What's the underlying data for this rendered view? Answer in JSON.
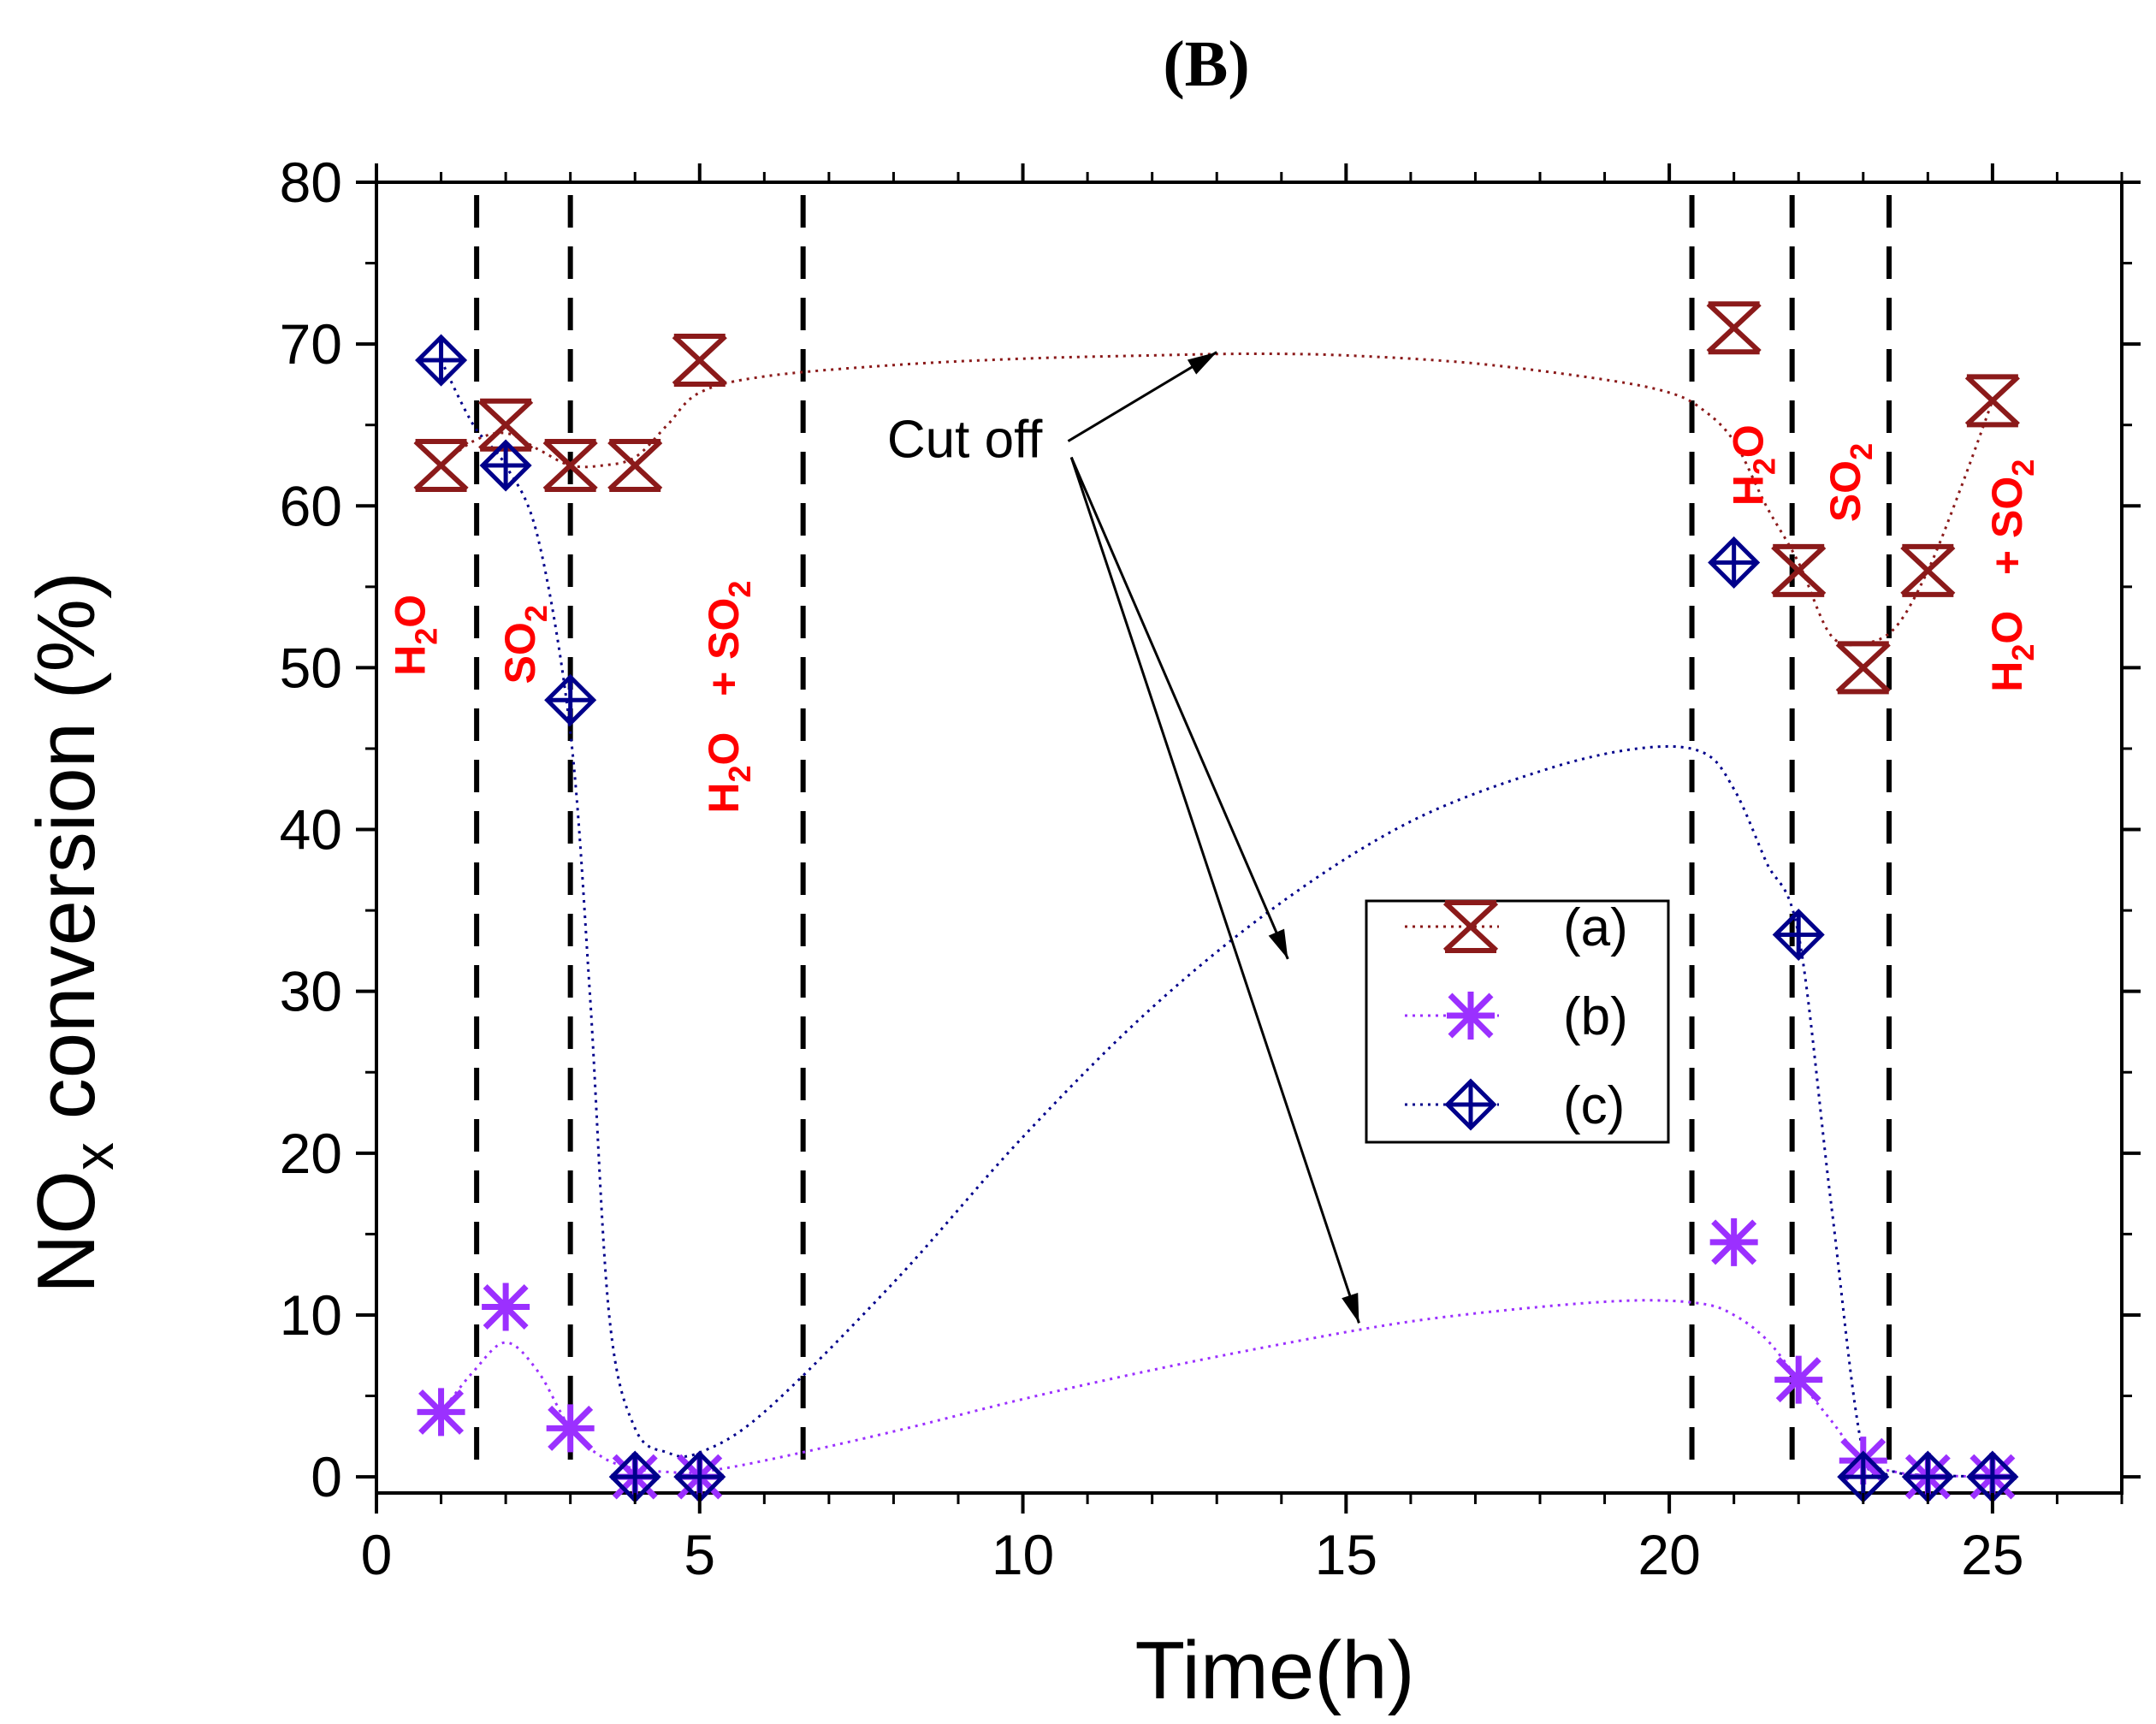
{
  "chart_data": {
    "type": "scatter",
    "panel_label": "(B)",
    "title": "",
    "xlabel": "Time(h)",
    "ylabel_main": "NO",
    "ylabel_sub": "x",
    "ylabel_rest": " conversion (%)",
    "xlim": [
      0,
      27
    ],
    "ylim": [
      -1,
      80
    ],
    "xticks": [
      0,
      5,
      10,
      15,
      20,
      25
    ],
    "yticks": [
      0,
      10,
      20,
      30,
      40,
      50,
      60,
      70,
      80
    ],
    "legend_position": "center-right",
    "series": [
      {
        "name": "(a)",
        "color": "#8b1a1a",
        "marker": "x-box",
        "x": [
          1,
          2,
          3,
          4,
          5,
          21,
          22,
          23,
          24,
          25
        ],
        "y": [
          62.5,
          65,
          62.5,
          62.5,
          69,
          71,
          56,
          50,
          56,
          66.5
        ],
        "fit_x": [
          1,
          1.5,
          2,
          2.5,
          3,
          3.5,
          4,
          4.5,
          5,
          6,
          8,
          10,
          12,
          13.5,
          15,
          17,
          19,
          20,
          20.5,
          21,
          21.5,
          22,
          22.5,
          23,
          23.5,
          24,
          24.5,
          25
        ],
        "fit_y": [
          62.5,
          64,
          64.5,
          63.5,
          62.5,
          62.5,
          63,
          65,
          67,
          68,
          68.7,
          69.1,
          69.3,
          69.4,
          69.3,
          68.8,
          67.8,
          67,
          66,
          64,
          60,
          56.5,
          52,
          51.5,
          52.5,
          56,
          61,
          66.5
        ]
      },
      {
        "name": "(b)",
        "color": "#9b30ff",
        "marker": "asterisk",
        "x": [
          1,
          2,
          3,
          4,
          5,
          21,
          22,
          23,
          24,
          25
        ],
        "y": [
          4,
          10.5,
          3,
          0,
          0,
          14.5,
          6,
          1,
          0,
          0
        ],
        "fit_x": [
          1,
          1.5,
          2,
          2.5,
          3,
          3.5,
          4,
          4.5,
          5,
          6,
          8,
          10,
          12,
          14,
          16,
          18,
          19.5,
          20.5,
          21,
          21.5,
          22,
          22.5,
          23,
          23.5,
          24,
          25
        ],
        "fit_y": [
          4,
          6.5,
          8.3,
          6.5,
          3,
          1.2,
          0.5,
          0.3,
          0.3,
          1,
          2.8,
          4.8,
          6.6,
          8.2,
          9.6,
          10.5,
          10.9,
          10.7,
          10,
          8.5,
          6,
          3.5,
          1,
          0.3,
          0.1,
          0
        ]
      },
      {
        "name": "(c)",
        "color": "#00008b",
        "marker": "cross-diamond",
        "x": [
          1,
          2,
          3,
          4,
          5,
          21,
          22,
          23,
          24,
          25
        ],
        "y": [
          69,
          62.5,
          48,
          0,
          0,
          56.5,
          33.5,
          0,
          0,
          0
        ],
        "fit_x": [
          1,
          1.5,
          2,
          2.5,
          3,
          3.3,
          3.6,
          4,
          4.5,
          5,
          6,
          8,
          10,
          12,
          14,
          16,
          18,
          19.5,
          20.5,
          21,
          21.5,
          22,
          22.5,
          23,
          23.5,
          24,
          25
        ],
        "fit_y": [
          69,
          65,
          62.5,
          58,
          46,
          30,
          10,
          3,
          1.5,
          1.5,
          4,
          12,
          21,
          29,
          35.5,
          40.5,
          43.6,
          45,
          44.8,
          42.5,
          38,
          33.5,
          17,
          1.5,
          0.3,
          0.1,
          0
        ]
      }
    ],
    "dashed_lines_x": [
      1.55,
      3.0,
      6.6,
      20.35,
      21.9,
      23.4
    ],
    "annotations": [
      {
        "id": "a1",
        "text": "H",
        "sub": "2",
        "tail": "O",
        "x": 0.75,
        "y": 49.5
      },
      {
        "id": "a2",
        "text": "SO",
        "sub": "2",
        "tail": "",
        "x": 2.45,
        "y": 49
      },
      {
        "id": "a3",
        "text": "H",
        "sub": "2",
        "tail": "O   + SO",
        "tail_sub": "2",
        "x": 5.6,
        "y": 41
      },
      {
        "id": "a4",
        "text": "H",
        "sub": "2",
        "tail": "O",
        "x": 21.45,
        "y": 60
      },
      {
        "id": "a5",
        "text": "SO",
        "sub": "2",
        "tail": "",
        "x": 22.95,
        "y": 59
      },
      {
        "id": "a6",
        "text": "H",
        "sub": "2",
        "tail": "O   + SO",
        "tail_sub": "2",
        "x": 25.45,
        "y": 48.5
      }
    ],
    "cutoff_label": "Cut off",
    "cutoff_label_pos": [
      7.9,
      63
    ],
    "cutoff_arrows": [
      {
        "from": [
          10.7,
          64
        ],
        "to": [
          13.0,
          69.5
        ]
      },
      {
        "from": [
          10.75,
          63
        ],
        "to": [
          14.1,
          32
        ]
      },
      {
        "from": [
          10.75,
          63
        ],
        "to": [
          15.2,
          9.5
        ]
      }
    ]
  }
}
